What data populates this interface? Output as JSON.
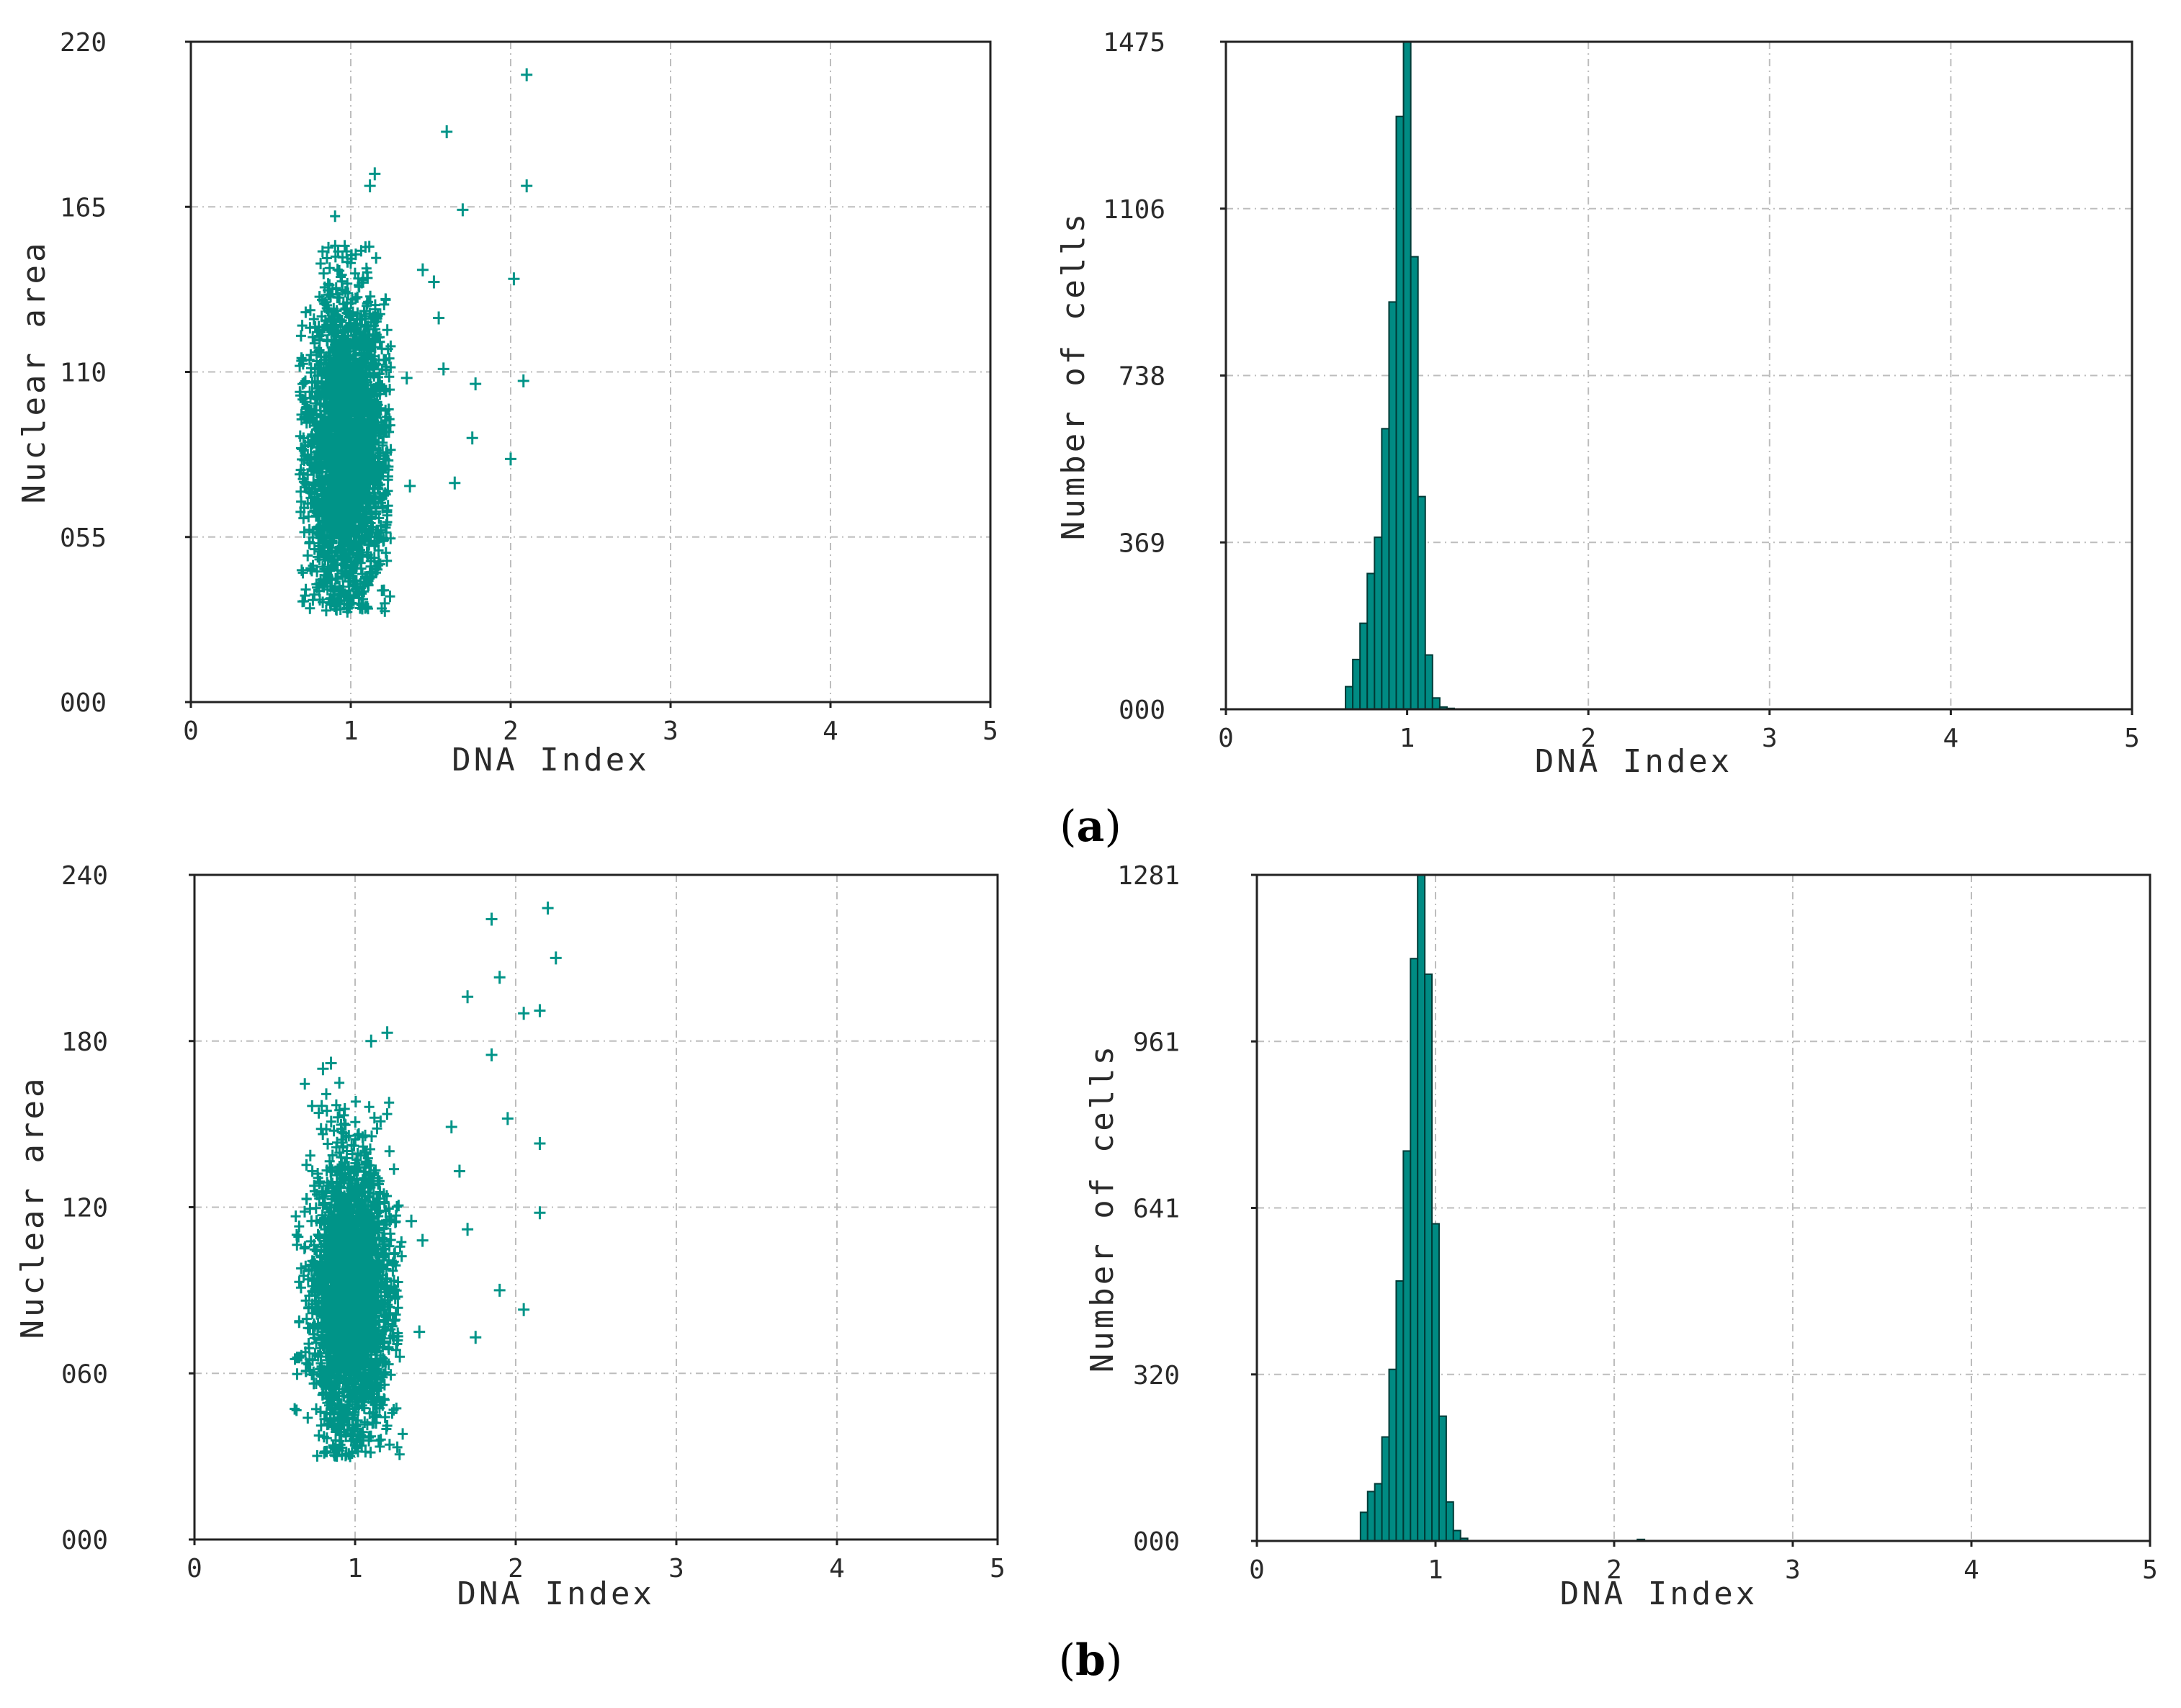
{
  "panels": [
    {
      "label": "a",
      "label_open": "(",
      "label_close": ")"
    },
    {
      "label": "b",
      "label_open": "(",
      "label_close": ")"
    }
  ],
  "colors": {
    "marker": "#009488",
    "bar_fill": "#008B83",
    "bar_edge": "#003a36",
    "grid": "#bdbdbd",
    "axis": "#222222"
  },
  "chart_data": [
    {
      "id": "a-scatter",
      "panel": "a",
      "type": "scatter",
      "xlabel": "DNA Index",
      "ylabel": "Nuclear area",
      "xlim": [
        0,
        5
      ],
      "ylim": [
        0,
        220
      ],
      "xticks": [
        "0",
        "1",
        "2",
        "3",
        "4",
        "5"
      ],
      "yticks": [
        "000",
        "055",
        "110",
        "165",
        "220"
      ],
      "grid": true,
      "marker": "+",
      "cloud": {
        "x_range": [
          0.68,
          1.25
        ],
        "x_center": 0.97,
        "y_range": [
          30,
          162
        ],
        "y_center": 85
      },
      "outliers": [
        [
          1.15,
          176
        ],
        [
          1.12,
          172
        ],
        [
          1.6,
          190
        ],
        [
          1.7,
          164
        ],
        [
          2.1,
          209
        ],
        [
          2.1,
          172
        ],
        [
          1.45,
          144
        ],
        [
          1.52,
          140
        ],
        [
          1.55,
          128
        ],
        [
          1.58,
          111
        ],
        [
          1.78,
          106
        ],
        [
          1.76,
          88
        ],
        [
          1.65,
          73
        ],
        [
          2.02,
          141
        ],
        [
          2.08,
          107
        ],
        [
          2.0,
          81
        ],
        [
          1.35,
          108
        ],
        [
          1.37,
          72
        ]
      ]
    },
    {
      "id": "a-histogram",
      "panel": "a",
      "type": "bar",
      "xlabel": "DNA Index",
      "ylabel": "Number of cells",
      "xlim": [
        0,
        5
      ],
      "ylim": [
        0,
        1475
      ],
      "xticks": [
        "0",
        "1",
        "2",
        "3",
        "4",
        "5"
      ],
      "yticks": [
        "000",
        "369",
        "738",
        "1106",
        "1475"
      ],
      "grid": true,
      "bin_width": 0.04,
      "bin_start": 0.66,
      "values": [
        50,
        110,
        190,
        300,
        380,
        620,
        900,
        1310,
        1475,
        1000,
        470,
        120,
        25,
        5,
        2
      ]
    },
    {
      "id": "b-scatter",
      "panel": "b",
      "type": "scatter",
      "xlabel": "DNA Index",
      "ylabel": "Nuclear area",
      "xlim": [
        0,
        5
      ],
      "ylim": [
        0,
        240
      ],
      "xticks": [
        "0",
        "1",
        "2",
        "3",
        "4",
        "5"
      ],
      "yticks": [
        "000",
        "060",
        "120",
        "180",
        "240"
      ],
      "grid": true,
      "marker": "+",
      "cloud": {
        "x_range": [
          0.62,
          1.3
        ],
        "x_center": 0.97,
        "y_range": [
          30,
          165
        ],
        "y_center": 88
      },
      "outliers": [
        [
          1.1,
          180
        ],
        [
          1.2,
          183
        ],
        [
          0.8,
          170
        ],
        [
          0.85,
          172
        ],
        [
          1.85,
          224
        ],
        [
          2.2,
          228
        ],
        [
          2.25,
          210
        ],
        [
          1.7,
          196
        ],
        [
          1.9,
          203
        ],
        [
          2.05,
          190
        ],
        [
          2.15,
          191
        ],
        [
          1.85,
          175
        ],
        [
          1.95,
          152
        ],
        [
          1.6,
          149
        ],
        [
          1.65,
          133
        ],
        [
          2.15,
          143
        ],
        [
          1.7,
          112
        ],
        [
          2.15,
          118
        ],
        [
          1.9,
          90
        ],
        [
          2.05,
          83
        ],
        [
          1.75,
          73
        ],
        [
          1.4,
          75
        ],
        [
          1.42,
          108
        ],
        [
          1.35,
          115
        ]
      ]
    },
    {
      "id": "b-histogram",
      "panel": "b",
      "type": "bar",
      "xlabel": "DNA Index",
      "ylabel": "Number of cells",
      "xlim": [
        0,
        5
      ],
      "ylim": [
        0,
        1281
      ],
      "xticks": [
        "0",
        "1",
        "2",
        "3",
        "4",
        "5"
      ],
      "yticks": [
        "000",
        "320",
        "641",
        "961",
        "1281"
      ],
      "grid": true,
      "bin_width": 0.04,
      "bin_start": 0.58,
      "values": [
        55,
        95,
        110,
        200,
        330,
        500,
        750,
        1120,
        1281,
        1090,
        610,
        240,
        75,
        20,
        5
      ],
      "extra_bins": [
        [
          2.13,
          3
        ]
      ]
    }
  ]
}
